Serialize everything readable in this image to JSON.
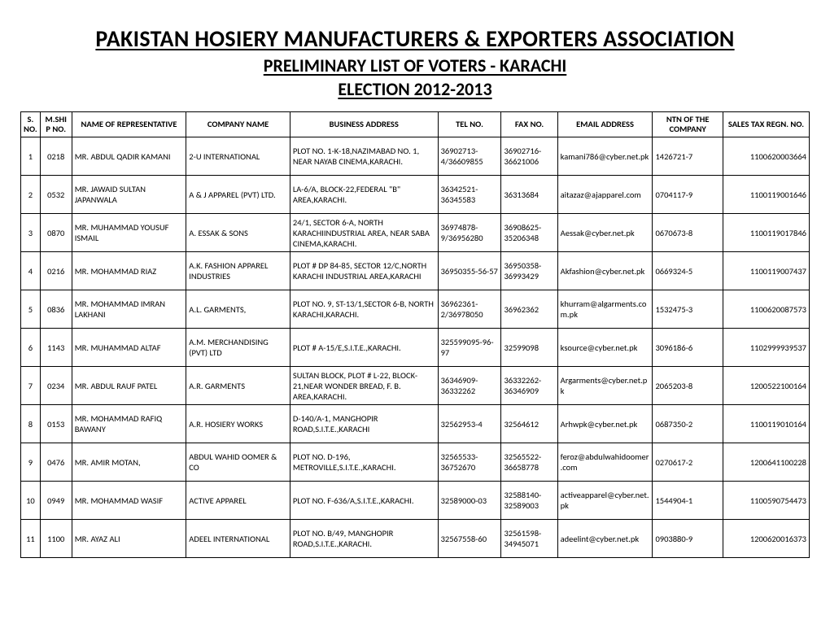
{
  "header": {
    "main": "PAKISTAN HOSIERY MANUFACTURERS & EXPORTERS ASSOCIATION",
    "sub": "PRELIMINARY LIST OF VOTERS - KARACHI",
    "year": "ELECTION 2012-2013"
  },
  "table": {
    "columns": [
      "S. NO.",
      "M.SHIP NO.",
      "NAME OF REPRESENTATIVE",
      "COMPANY NAME",
      "BUSINESS ADDRESS",
      "TEL NO.",
      "FAX NO.",
      "EMAIL ADDRESS",
      "NTN OF THE COMPANY",
      "SALES TAX REGN. NO."
    ],
    "rows": [
      {
        "sno": "1",
        "mship": "0218",
        "rep": "MR. ABDUL QADIR KAMANI",
        "company": "2-U INTERNATIONAL",
        "address": "PLOT NO. 1-K-18,NAZIMABAD NO. 1, NEAR NAYAB CINEMA,KARACHI.",
        "tel": "36902713-4/36609855",
        "fax": "36902716-36621006",
        "email": "kamani786@cyber.net.pk",
        "ntn": "1426721-7",
        "stx": "1100620003664"
      },
      {
        "sno": "2",
        "mship": "0532",
        "rep": "MR. JAWAID SULTAN JAPANWALA",
        "company": "A & J APPAREL (PVT) LTD.",
        "address": "LA-6/A, BLOCK-22,FEDERAL \"B\" AREA,KARACHI.",
        "tel": "36342521-36345583",
        "fax": "36313684",
        "email": "aitazaz@ajapparel.com",
        "ntn": "0704117-9",
        "stx": "1100119001646"
      },
      {
        "sno": "3",
        "mship": "0870",
        "rep": "MR. MUHAMMAD YOUSUF ISMAIL",
        "company": "A. ESSAK & SONS",
        "address": "24/1, SECTOR 6-A, NORTH KARACHIINDUSTRIAL AREA, NEAR SABA CINEMA,KARACHI.",
        "tel": "36974878-9/36956280",
        "fax": "36908625-35206348",
        "email": "Aessak@cyber.net.pk",
        "ntn": "0670673-8",
        "stx": "1100119017846"
      },
      {
        "sno": "4",
        "mship": "0216",
        "rep": "MR. MOHAMMAD RIAZ",
        "company": "A.K. FASHION APPAREL INDUSTRIES",
        "address": "PLOT # DP 84-85, SECTOR 12/C,NORTH KARACHI INDUSTRIAL AREA,KARACHI",
        "tel": "36950355-56-57",
        "fax": "36950358-36993429",
        "email": "Akfashion@cyber.net.pk",
        "ntn": "0669324-5",
        "stx": "1100119007437"
      },
      {
        "sno": "5",
        "mship": "0836",
        "rep": "MR. MOHAMMAD IMRAN LAKHANI",
        "company": "A.L. GARMENTS,",
        "address": "PLOT NO. 9, ST-13/1,SECTOR 6-B, NORTH KARACHI,KARACHI.",
        "tel": "36962361-2/36978050",
        "fax": "36962362",
        "email": "khurram@algarments.com.pk",
        "ntn": "1532475-3",
        "stx": "1100620087573"
      },
      {
        "sno": "6",
        "mship": "1143",
        "rep": "MR. MUHAMMAD ALTAF",
        "company": "A.M. MERCHANDISING (PVT) LTD",
        "address": "PLOT # A-15/E,S.I.T.E.,KARACHI.",
        "tel": "325599095-96-97",
        "fax": "32599098",
        "email": "ksource@cyber.net.pk",
        "ntn": "3096186-6",
        "stx": "1102999939537"
      },
      {
        "sno": "7",
        "mship": "0234",
        "rep": "MR. ABDUL RAUF PATEL",
        "company": "A.R. GARMENTS",
        "address": "SULTAN BLOCK, PLOT # L-22, BLOCK-21,NEAR WONDER BREAD, F. B. AREA,KARACHI.",
        "tel": "36346909-36332262",
        "fax": "36332262-36346909",
        "email": "Argarments@cyber.net.pk",
        "ntn": "2065203-8",
        "stx": "1200522100164"
      },
      {
        "sno": "8",
        "mship": "0153",
        "rep": "MR. MOHAMMAD RAFIQ BAWANY",
        "company": "A.R. HOSIERY WORKS",
        "address": "D-140/A-1, MANGHOPIR ROAD,S.I.T.E.,KARACHI",
        "tel": "32562953-4",
        "fax": "32564612",
        "email": "Arhwpk@cyber.net.pk",
        "ntn": "0687350-2",
        "stx": "1100119010164"
      },
      {
        "sno": "9",
        "mship": "0476",
        "rep": "MR. AMIR MOTAN,",
        "company": "ABDUL WAHID OOMER & CO",
        "address": "PLOT NO. D-196, METROVILLE,S.I.T.E.,KARACHI.",
        "tel": "32565533-36752670",
        "fax": "32565522-36658778",
        "email": "feroz@abdulwahidoomer.com",
        "ntn": "0270617-2",
        "stx": "1200641100228"
      },
      {
        "sno": "10",
        "mship": "0949",
        "rep": "MR. MOHAMMAD WASIF",
        "company": "ACTIVE APPAREL",
        "address": "PLOT NO. F-636/A,S.I.T.E.,KARACHI.",
        "tel": "32589000-03",
        "fax": "32588140-32589003",
        "email": "activeapparel@cyber.net.pk",
        "ntn": "1544904-1",
        "stx": "1100590754473"
      },
      {
        "sno": "11",
        "mship": "1100",
        "rep": "MR. AYAZ ALI",
        "company": "ADEEL INTERNATIONAL",
        "address": "PLOT NO. B/49, MANGHOPIR ROAD,S.I.T.E.,KARACHI.",
        "tel": "32567558-60",
        "fax": "32561598-34945071",
        "email": "adeelint@cyber.net.pk",
        "ntn": "0903880-9",
        "stx": "1200620016373"
      }
    ]
  }
}
